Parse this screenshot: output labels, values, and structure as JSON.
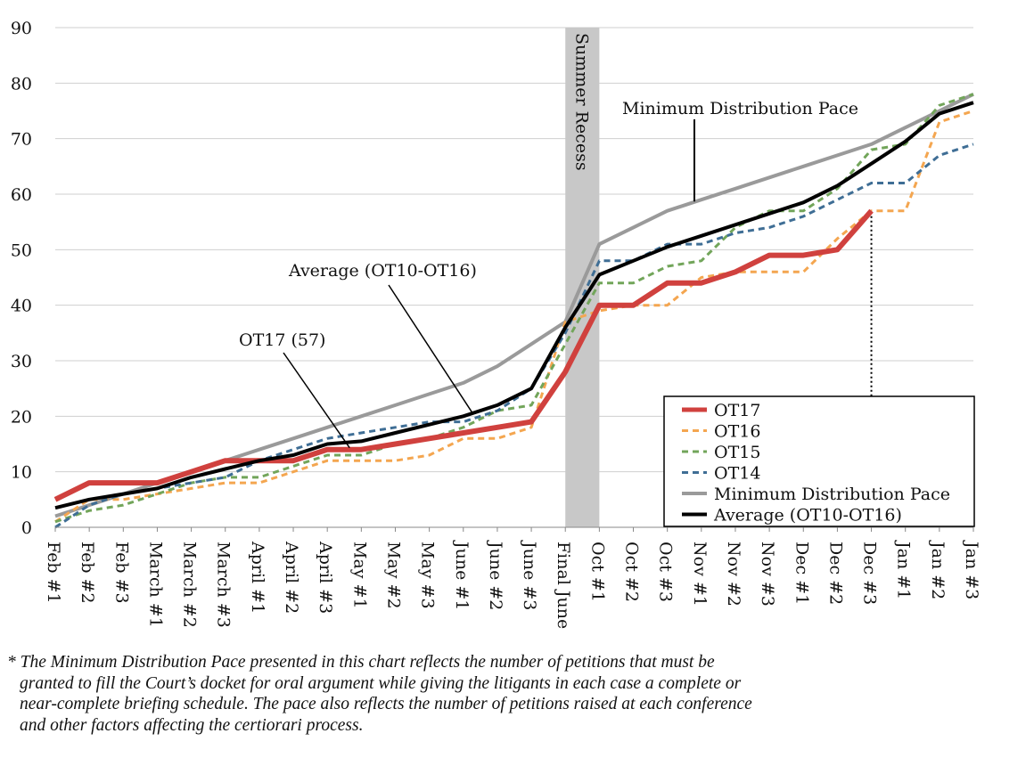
{
  "chart_data": {
    "type": "line",
    "categories": [
      "Feb #1",
      "Feb #2",
      "Feb #3",
      "March #1",
      "March #2",
      "March #3",
      "April #1",
      "April #2",
      "April #3",
      "May #1",
      "May #2",
      "May #3",
      "June #1",
      "June #2",
      "June #3",
      "Final June",
      "Oct #1",
      "Oct #2",
      "Oct #3",
      "Nov #1",
      "Nov #2",
      "Nov #3",
      "Dec #1",
      "Dec #2",
      "Dec #3",
      "Jan #1",
      "Jan #2",
      "Jan #3"
    ],
    "ylim": [
      0,
      90
    ],
    "yticks": [
      0,
      10,
      20,
      30,
      40,
      50,
      60,
      70,
      80,
      90
    ],
    "grid": "horizontal",
    "legend_position": "bottom-right",
    "series": [
      {
        "name": "OT17",
        "color": "#d0413e",
        "dash": "solid",
        "values": [
          5,
          8,
          8,
          8,
          10,
          12,
          12,
          12,
          14,
          14,
          15,
          16,
          17,
          18,
          19,
          28,
          40,
          40,
          44,
          44,
          46,
          49,
          49,
          50,
          57,
          null,
          null,
          null
        ]
      },
      {
        "name": "OT16",
        "color": "#f4a650",
        "dash": "dashed",
        "values": [
          1,
          5,
          5,
          6,
          7,
          8,
          8,
          10,
          12,
          12,
          12,
          13,
          16,
          16,
          18,
          37,
          39,
          40,
          40,
          45,
          46,
          46,
          46,
          52,
          57,
          57,
          73,
          75
        ]
      },
      {
        "name": "OT15",
        "color": "#72a55a",
        "dash": "dashed",
        "values": [
          1,
          3,
          4,
          6,
          8,
          9,
          9,
          11,
          13,
          13,
          15,
          16,
          18,
          21,
          22,
          33,
          44,
          44,
          47,
          48,
          54,
          57,
          57,
          61,
          68,
          69,
          76,
          78
        ]
      },
      {
        "name": "OT14",
        "color": "#3f6e95",
        "dash": "dashed",
        "values": [
          0,
          4,
          6,
          7,
          8,
          9,
          12,
          14,
          16,
          17,
          18,
          19,
          19,
          21,
          25,
          35,
          48,
          48,
          51,
          51,
          53,
          54,
          56,
          59,
          62,
          62,
          67,
          69
        ]
      },
      {
        "name": "Minimum Distribution Pace",
        "color": "#9a9a9a",
        "dash": "solid",
        "values": [
          2,
          4,
          6,
          8,
          10,
          12,
          14,
          16,
          18,
          20,
          22,
          24,
          26,
          29,
          33,
          37,
          51,
          54,
          57,
          59,
          61,
          63,
          65,
          67,
          69,
          72,
          75,
          78
        ]
      },
      {
        "name": "Average (OT10-OT16)",
        "color": "#000000",
        "dash": "solid",
        "values": [
          3.5,
          5,
          6,
          7,
          9,
          10.5,
          12,
          13,
          15,
          15.5,
          17,
          18.5,
          20,
          22,
          25,
          36,
          45.5,
          48,
          50.5,
          52.5,
          54.5,
          56.5,
          58.5,
          61.5,
          65.5,
          69.5,
          74.5,
          76.5
        ]
      }
    ],
    "shaded_band": {
      "label": "Summer Recess",
      "from_category": "Final June",
      "to_category": "Oct #1"
    },
    "annotations": [
      {
        "text": "Minimum Distribution Pace",
        "points_to_series": "Minimum Distribution Pace",
        "category": "Nov #1"
      },
      {
        "text": "Average (OT10-OT16)",
        "points_to_series": "Average (OT10-OT16)",
        "category": "June #1"
      },
      {
        "text": "OT17 (57)",
        "points_to_series": "OT17",
        "category": "April #3"
      }
    ]
  },
  "footnote": {
    "lines": [
      "* The Minimum Distribution Pace presented in this chart reflects the number of petitions that must be",
      "granted to fill the Court’s docket for oral argument while giving the litigants in each case a complete or",
      "near-complete briefing schedule. The pace also reflects the number of petitions raised at each conference",
      "and other factors affecting the certiorari process."
    ]
  }
}
